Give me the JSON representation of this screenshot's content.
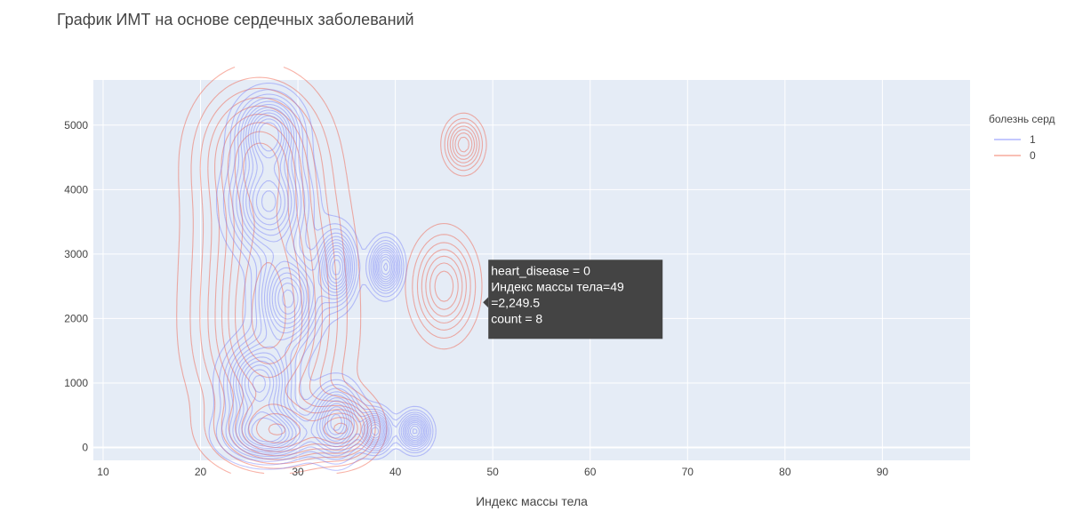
{
  "title": "График ИМТ на основе сердечных заболеваний",
  "colors": {
    "plot_bg": "#e5ecf6",
    "grid": "#ffffff",
    "series_1": "#636efa",
    "series_0": "#ef553b",
    "tooltip_bg": "#444444"
  },
  "chart_data": {
    "type": "contour",
    "xlabel": "Индекс массы тела",
    "ylabel": "",
    "xlim": [
      9,
      99
    ],
    "ylim": [
      -200,
      5700
    ],
    "x_ticks": [
      "10",
      "20",
      "30",
      "40",
      "50",
      "60",
      "70",
      "80",
      "90"
    ],
    "y_ticks": [
      "0",
      "1000",
      "2000",
      "3000",
      "4000",
      "5000"
    ],
    "grid": true,
    "legend": {
      "title": "болезнь серд",
      "placement": "right",
      "entries": [
        "1",
        "0"
      ]
    },
    "series": [
      {
        "name": "1",
        "color": "#636efa",
        "density_peaks": [
          {
            "x": 27,
            "y": 4900,
            "sx": 2.0,
            "sy": 350
          },
          {
            "x": 27,
            "y": 3800,
            "sx": 2.5,
            "sy": 500
          },
          {
            "x": 29,
            "y": 2300,
            "sx": 2.0,
            "sy": 450
          },
          {
            "x": 34,
            "y": 2800,
            "sx": 1.2,
            "sy": 350
          },
          {
            "x": 26,
            "y": 1000,
            "sx": 2.2,
            "sy": 400
          },
          {
            "x": 27,
            "y": 200,
            "sx": 2.8,
            "sy": 250
          },
          {
            "x": 34,
            "y": 400,
            "sx": 1.5,
            "sy": 350
          },
          {
            "x": 38,
            "y": 250,
            "sx": 1.0,
            "sy": 200
          },
          {
            "x": 42,
            "y": 250,
            "sx": 1.0,
            "sy": 180
          },
          {
            "x": 39,
            "y": 2800,
            "sx": 1.0,
            "sy": 250
          }
        ]
      },
      {
        "name": "0",
        "color": "#ef553b",
        "density_peaks": [
          {
            "x": 26,
            "y": 4600,
            "sx": 4.0,
            "sy": 700
          },
          {
            "x": 27,
            "y": 3000,
            "sx": 4.5,
            "sy": 900
          },
          {
            "x": 27,
            "y": 1500,
            "sx": 4.5,
            "sy": 800
          },
          {
            "x": 28,
            "y": 200,
            "sx": 4.0,
            "sy": 350
          },
          {
            "x": 35,
            "y": 300,
            "sx": 2.0,
            "sy": 300
          },
          {
            "x": 45,
            "y": 2500,
            "sx": 2.0,
            "sy": 500
          },
          {
            "x": 47,
            "y": 4700,
            "sx": 1.2,
            "sy": 250
          }
        ]
      }
    ],
    "tooltip": {
      "anchor_x": 49,
      "anchor_y": 2249.5,
      "lines": [
        "heart_disease = 0",
        "Индекс массы тела=49",
        "=2,249.5",
        "count = 8"
      ]
    }
  }
}
